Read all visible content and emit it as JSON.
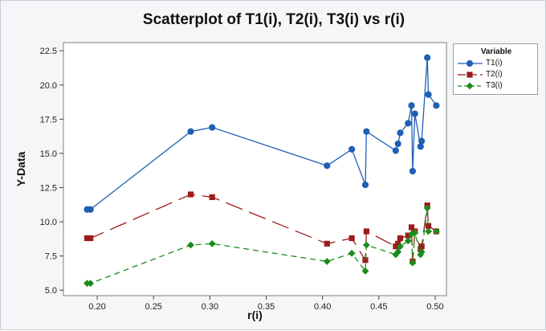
{
  "chart_data": {
    "type": "scatter",
    "title": "Scatterplot of T1(i), T2(i), T3(i) vs r(i)",
    "xlabel": "r(i)",
    "ylabel": "Y-Data",
    "xlim": [
      0.17,
      0.51
    ],
    "ylim": [
      4.6,
      23.1
    ],
    "x_ticks": [
      "0.20",
      "0.25",
      "0.30",
      "0.35",
      "0.40",
      "0.45",
      "0.50"
    ],
    "y_ticks": [
      "5.0",
      "7.5",
      "10.0",
      "12.5",
      "15.0",
      "17.5",
      "20.0",
      "22.5"
    ],
    "grid": false,
    "legend": {
      "title": "Variable",
      "position": "right"
    },
    "series": [
      {
        "name": "T1(i)",
        "color": "#1f5fb4",
        "marker": "circle",
        "line": "solid",
        "points": [
          [
            0.191,
            10.9
          ],
          [
            0.194,
            10.9
          ],
          [
            0.283,
            16.6
          ],
          [
            0.302,
            16.9
          ],
          [
            0.404,
            14.1
          ],
          [
            0.426,
            15.3
          ],
          [
            0.438,
            12.7
          ],
          [
            0.439,
            16.6
          ],
          [
            0.465,
            15.2
          ],
          [
            0.467,
            15.7
          ],
          [
            0.469,
            16.5
          ],
          [
            0.476,
            17.2
          ],
          [
            0.479,
            18.5
          ],
          [
            0.48,
            13.7
          ],
          [
            0.482,
            17.9
          ],
          [
            0.487,
            15.5
          ],
          [
            0.488,
            15.9
          ],
          [
            0.493,
            22.0
          ],
          [
            0.494,
            19.3
          ],
          [
            0.501,
            18.5
          ]
        ]
      },
      {
        "name": "T2(i)",
        "color": "#9b1c1c",
        "marker": "square",
        "line": "longdash",
        "points": [
          [
            0.191,
            8.8
          ],
          [
            0.194,
            8.8
          ],
          [
            0.283,
            12.0
          ],
          [
            0.302,
            11.8
          ],
          [
            0.404,
            8.4
          ],
          [
            0.426,
            8.8
          ],
          [
            0.438,
            7.2
          ],
          [
            0.439,
            9.3
          ],
          [
            0.465,
            8.2
          ],
          [
            0.467,
            8.4
          ],
          [
            0.469,
            8.8
          ],
          [
            0.476,
            9.0
          ],
          [
            0.479,
            9.6
          ],
          [
            0.48,
            7.1
          ],
          [
            0.482,
            9.3
          ],
          [
            0.487,
            8.0
          ],
          [
            0.488,
            8.2
          ],
          [
            0.493,
            11.2
          ],
          [
            0.494,
            9.7
          ],
          [
            0.501,
            9.3
          ]
        ]
      },
      {
        "name": "T3(i)",
        "color": "#1a8c1a",
        "marker": "diamond",
        "line": "dash",
        "points": [
          [
            0.191,
            5.5
          ],
          [
            0.194,
            5.5
          ],
          [
            0.283,
            8.3
          ],
          [
            0.302,
            8.4
          ],
          [
            0.404,
            7.1
          ],
          [
            0.426,
            7.7
          ],
          [
            0.438,
            6.4
          ],
          [
            0.439,
            8.3
          ],
          [
            0.465,
            7.6
          ],
          [
            0.467,
            7.8
          ],
          [
            0.469,
            8.2
          ],
          [
            0.476,
            8.6
          ],
          [
            0.479,
            9.1
          ],
          [
            0.48,
            7.0
          ],
          [
            0.482,
            9.2
          ],
          [
            0.487,
            7.6
          ],
          [
            0.488,
            7.8
          ],
          [
            0.493,
            11.0
          ],
          [
            0.494,
            9.3
          ],
          [
            0.501,
            9.3
          ]
        ]
      }
    ]
  }
}
